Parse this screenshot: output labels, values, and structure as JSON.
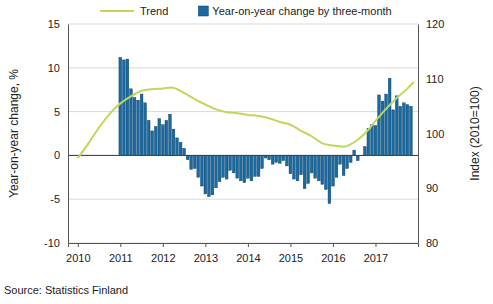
{
  "chart_data": {
    "type": "bar",
    "source": "Source: Statistics Finland",
    "y_label": "Year-on-year change, %",
    "y2_label": "Index (2010=100)",
    "xlim": [
      2009.77,
      2018.0
    ],
    "xticks": [
      2010,
      2011,
      2012,
      2013,
      2014,
      2015,
      2016,
      2017
    ],
    "ylim": [
      -10,
      15
    ],
    "yticks": [
      -10,
      -5,
      0,
      5,
      10,
      15
    ],
    "y2lim": [
      80,
      120
    ],
    "y2ticks": [
      80,
      90,
      100,
      110,
      120
    ],
    "grid": true,
    "legend": "top",
    "series": [
      {
        "name": "Trend",
        "type": "line",
        "axis": "y2",
        "color": "#bcd95a",
        "x": [
          2010.0,
          2010.25,
          2010.5,
          2010.75,
          2011.0,
          2011.25,
          2011.5,
          2011.75,
          2012.0,
          2012.2,
          2012.5,
          2012.75,
          2013.0,
          2013.25,
          2013.5,
          2013.75,
          2014.0,
          2014.25,
          2014.5,
          2014.75,
          2015.0,
          2015.25,
          2015.5,
          2015.75,
          2016.0,
          2016.25,
          2016.5,
          2016.75,
          2017.0,
          2017.25,
          2017.5,
          2017.75,
          2017.9
        ],
        "values": [
          95.5,
          98.2,
          101.1,
          103.6,
          105.5,
          106.8,
          107.8,
          108.1,
          108.2,
          108.4,
          107.4,
          106.3,
          105.3,
          104.4,
          103.9,
          103.7,
          103.4,
          103.2,
          102.8,
          102.1,
          101.6,
          100.5,
          99.5,
          98.2,
          97.8,
          97.6,
          98.4,
          100.0,
          102.3,
          104.5,
          106.5,
          108.2,
          109.4
        ]
      },
      {
        "name": "Year-on-year change by three-month",
        "type": "bar",
        "axis": "y",
        "color": "#1a6aa0",
        "x": [
          2011.0,
          2011.083,
          2011.167,
          2011.25,
          2011.333,
          2011.417,
          2011.5,
          2011.583,
          2011.667,
          2011.75,
          2011.833,
          2011.917,
          2012.0,
          2012.083,
          2012.167,
          2012.25,
          2012.333,
          2012.417,
          2012.5,
          2012.583,
          2012.667,
          2012.75,
          2012.833,
          2012.917,
          2013.0,
          2013.083,
          2013.167,
          2013.25,
          2013.333,
          2013.417,
          2013.5,
          2013.583,
          2013.667,
          2013.75,
          2013.833,
          2013.917,
          2014.0,
          2014.083,
          2014.167,
          2014.25,
          2014.333,
          2014.417,
          2014.5,
          2014.583,
          2014.667,
          2014.75,
          2014.833,
          2014.917,
          2015.0,
          2015.083,
          2015.167,
          2015.25,
          2015.333,
          2015.417,
          2015.5,
          2015.583,
          2015.667,
          2015.75,
          2015.833,
          2015.917,
          2016.0,
          2016.083,
          2016.167,
          2016.25,
          2016.333,
          2016.417,
          2016.5,
          2016.583,
          2016.667,
          2016.75,
          2016.833,
          2016.917,
          2017.0,
          2017.083,
          2017.167,
          2017.25,
          2017.333,
          2017.417,
          2017.5,
          2017.583,
          2017.667,
          2017.75,
          2017.833
        ],
        "values": [
          11.2,
          10.9,
          11.0,
          7.6,
          6.6,
          6.3,
          7.0,
          6.0,
          4.0,
          2.8,
          3.3,
          4.2,
          3.5,
          4.0,
          4.7,
          3.0,
          2.0,
          1.5,
          0.8,
          -0.5,
          -1.6,
          -1.5,
          -2.5,
          -3.5,
          -4.4,
          -4.7,
          -4.5,
          -3.7,
          -3.0,
          -2.5,
          -2.7,
          -1.7,
          -2.0,
          -2.6,
          -2.9,
          -3.1,
          -2.6,
          -2.9,
          -2.4,
          -2.4,
          -1.5,
          -0.3,
          -0.5,
          -1.0,
          -0.8,
          -0.9,
          -0.6,
          -1.2,
          -2.1,
          -2.7,
          -2.9,
          -2.2,
          -3.8,
          -3.2,
          -2.0,
          -2.6,
          -2.9,
          -3.3,
          -3.9,
          -5.5,
          -3.5,
          -2.5,
          -1.0,
          -2.3,
          -1.5,
          -0.8,
          0.6,
          -0.6,
          0.0,
          1.0,
          3.1,
          3.5,
          3.4,
          6.9,
          6.2,
          7.0,
          8.8,
          5.2,
          6.8,
          5.6,
          6.0,
          5.8,
          5.6
        ]
      }
    ]
  }
}
